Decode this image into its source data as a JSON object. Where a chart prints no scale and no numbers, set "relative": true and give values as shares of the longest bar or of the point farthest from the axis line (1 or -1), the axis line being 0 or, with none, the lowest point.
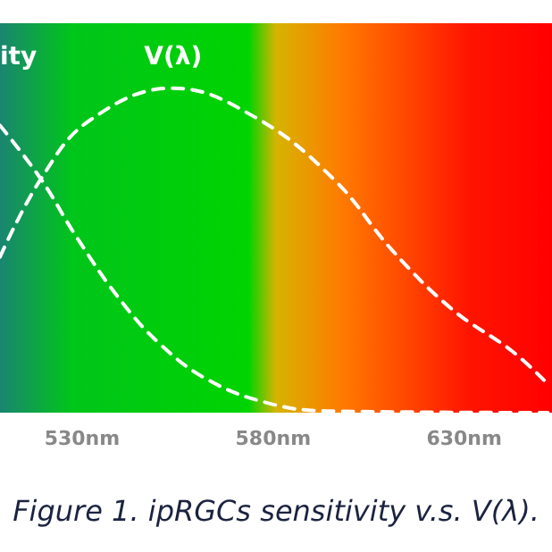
{
  "chart_data": {
    "type": "line",
    "relative": true,
    "line_style": "dashed",
    "marker": "none",
    "legend": false,
    "grid": false,
    "xlim": [
      508.5,
      653
    ],
    "xticks": [
      {
        "value": 530,
        "label": "530nm"
      },
      {
        "value": 580,
        "label": "580nm"
      },
      {
        "value": 630,
        "label": "630nm"
      }
    ],
    "series": [
      {
        "name": "ity",
        "color": "#ffffff",
        "x": [
          508.5,
          519.2,
          528.6,
          539.8,
          550.5,
          563.1,
          578.5,
          593.9,
          651.9
        ],
        "values": [
          0.885,
          0.72,
          0.54,
          0.35,
          0.21,
          0.1,
          0.03,
          0.005,
          0
        ]
      },
      {
        "name": "V(λ)",
        "color": "#ffffff",
        "x": [
          508.5,
          519.2,
          531.9,
          553.8,
          575.3,
          595.8,
          611.2,
          626.7,
          642.5,
          650.9
        ],
        "values": [
          0.48,
          0.72,
          0.9,
          1,
          0.91,
          0.72,
          0.5,
          0.32,
          0.19,
          0.1
        ]
      }
    ],
    "annotations": [
      "Figure 1. ipRGCs sensitivity v.s. V(λ)."
    ]
  }
}
